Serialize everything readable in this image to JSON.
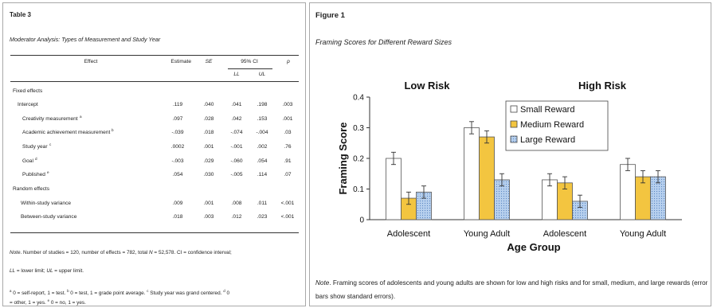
{
  "table": {
    "label": "Table 3",
    "title": "Moderator Analysis: Types of Measurement and Study Year",
    "headers": {
      "effect": "Effect",
      "estimate": "Estimate",
      "se": "SE",
      "ci": "95% CI",
      "p": "p",
      "ll": "LL",
      "ul": "UL"
    },
    "rows": [
      {
        "label": "Fixed effects",
        "sup": "",
        "estimate": "",
        "se": "",
        "ll": "",
        "ul": "",
        "p": ""
      },
      {
        "label": "Intercept",
        "sup": "",
        "estimate": ".119",
        "se": ".040",
        "ll": ".041",
        "ul": ".198",
        "p": ".003"
      },
      {
        "label": "Creativity measurement",
        "sup": "a",
        "estimate": ".097",
        "se": ".028",
        "ll": ".042",
        "ul": ".153",
        "p": ".001"
      },
      {
        "label": "Academic achievement measurement",
        "sup": "b",
        "estimate": "-.039",
        "se": ".018",
        "ll": "-.074",
        "ul": "-.004",
        "p": ".03"
      },
      {
        "label": "Study year",
        "sup": "c",
        "estimate": ".0002",
        "se": ".001",
        "ll": "-.001",
        "ul": ".002",
        "p": ".76"
      },
      {
        "label": "Goal",
        "sup": "d",
        "estimate": "-.003",
        "se": ".029",
        "ll": "-.060",
        "ul": ".054",
        "p": ".91"
      },
      {
        "label": "Published",
        "sup": "e",
        "estimate": ".054",
        "se": ".030",
        "ll": "-.005",
        "ul": ".114",
        "p": ".07"
      },
      {
        "label": "Random effects",
        "sup": "",
        "estimate": "",
        "se": "",
        "ll": "",
        "ul": "",
        "p": ""
      },
      {
        "label": "Within-study variance",
        "sup": "",
        "estimate": ".009",
        "se": ".001",
        "ll": ".008",
        "ul": ".011",
        "p": "<.001"
      },
      {
        "label": "Between-study variance",
        "sup": "",
        "estimate": ".018",
        "se": ".003",
        "ll": ".012",
        "ul": ".023",
        "p": "<.001"
      }
    ],
    "note": {
      "prefix": "Note",
      "line1a": ". Number of studies = 120, number of effects = 782, total ",
      "n_symbol": "N",
      "line1b": " = 52,578. CI = confidence interval;",
      "ll_symbol": "LL",
      "line2a": " = lower limit; ",
      "ul_symbol": "UL",
      "line2b": " = upper limit.",
      "fn_a_sup": "a",
      "fn_a": " 0 = self-report, 1 = test. ",
      "fn_b_sup": "b",
      "fn_b": " 0 = test, 1 = grade point average. ",
      "fn_c_sup": "c",
      "fn_c": " Study year was grand centered. ",
      "fn_d_sup": "d",
      "fn_d": " 0",
      "fn_d2": "= other, 1 = yes. ",
      "fn_e_sup": "e",
      "fn_e": " 0 = no, 1 = yes."
    }
  },
  "figure": {
    "label": "Figure 1",
    "title": "Framing Scores for Different Reward Sizes",
    "note_prefix": "Note",
    "note_text": ". Framing scores of adolescents and young adults are shown for low and high risks and for small, medium, and large rewards (error bars show standard errors)."
  },
  "chart_data": {
    "type": "bar",
    "panels": [
      "Low Risk",
      "High Risk"
    ],
    "categories": [
      "Adolescent",
      "Young Adult",
      "Adolescent",
      "Young Adult"
    ],
    "series": [
      {
        "name": "Small Reward",
        "values": [
          0.2,
          0.3,
          0.13,
          0.18
        ],
        "errors": [
          0.02,
          0.02,
          0.02,
          0.02
        ],
        "color": "#ffffff"
      },
      {
        "name": "Medium Reward",
        "values": [
          0.07,
          0.27,
          0.12,
          0.14
        ],
        "errors": [
          0.02,
          0.02,
          0.02,
          0.02
        ],
        "color": "#f3c540"
      },
      {
        "name": "Large Reward",
        "values": [
          0.09,
          0.13,
          0.06,
          0.14
        ],
        "errors": [
          0.02,
          0.02,
          0.02,
          0.02
        ],
        "color": "#a9c6e8"
      }
    ],
    "xlabel": "Age Group",
    "ylabel": "Framing Score",
    "ylim": [
      0,
      0.4
    ],
    "yticks": [
      "0",
      "0.1",
      "0.2",
      "0.3",
      "0.4"
    ],
    "legend_position": "top-right",
    "grid": false
  }
}
